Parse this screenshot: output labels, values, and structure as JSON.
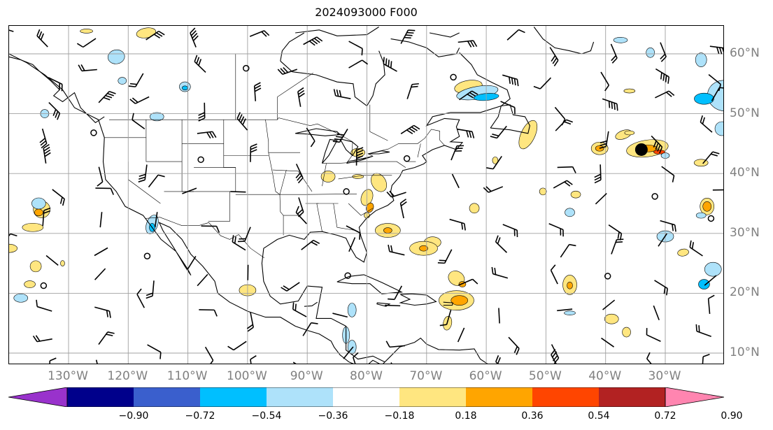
{
  "title": "2024093000 F000",
  "map": {
    "longitude_labels": [
      "130°W",
      "120°W",
      "110°W",
      "100°W",
      "90°W",
      "80°W",
      "70°W",
      "60°W",
      "50°W",
      "40°W",
      "30°W"
    ],
    "latitude_labels": [
      "60°N",
      "50°N",
      "40°N",
      "30°N",
      "20°N",
      "10°N"
    ],
    "gridline_color": "#a0a0a0",
    "coastline_color": "#000000",
    "marked_point": {
      "lon": -34,
      "lat": 44
    }
  },
  "colorbar": {
    "colors": [
      "#9932cc",
      "#00008b",
      "#3a5fcd",
      "#00bfff",
      "#aee2fa",
      "#ffffff",
      "#ffe680",
      "#ffa500",
      "#ff4500",
      "#b22222",
      "#ff85b0"
    ],
    "tick_labels": [
      "−0.90",
      "−0.72",
      "−0.54",
      "−0.36",
      "−0.18",
      "0.18",
      "0.36",
      "0.54",
      "0.72",
      "0.90"
    ]
  },
  "legend_colors": {
    "positive_light": "#ffe680",
    "positive_mid": "#ffa500",
    "positive_high": "#ff4500",
    "negative_light": "#aee2fa",
    "negative_mid": "#00bfff"
  }
}
